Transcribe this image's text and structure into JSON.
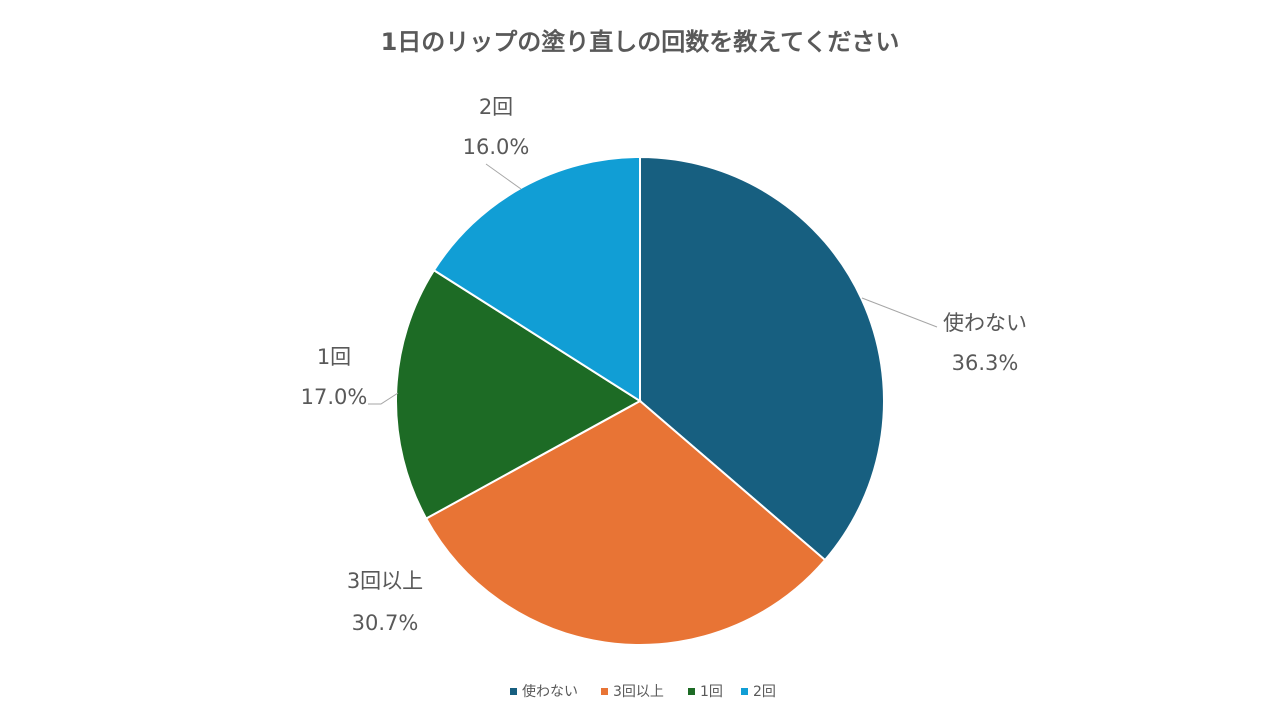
{
  "chart_data": {
    "type": "pie",
    "title": "1日のリップの塗り直しの回数を教えてください",
    "categories": [
      "使わない",
      "3回以上",
      "1回",
      "2回"
    ],
    "values": [
      36.3,
      30.7,
      17.0,
      16.0
    ],
    "value_labels": [
      "36.3%",
      "30.7%",
      "17.0%",
      "16.0%"
    ],
    "colors": [
      "#175f80",
      "#e87435",
      "#1d6b25",
      "#119ed5"
    ],
    "start": "12 o'clock",
    "direction": "clockwise",
    "legend_position": "bottom"
  }
}
